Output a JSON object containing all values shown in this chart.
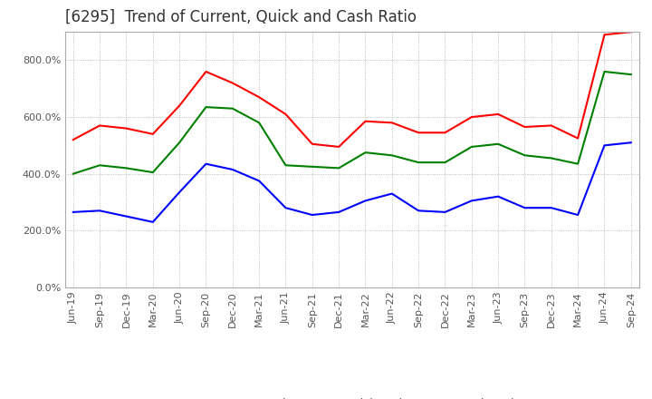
{
  "title": "[6295]  Trend of Current, Quick and Cash Ratio",
  "x_labels": [
    "Jun-19",
    "Sep-19",
    "Dec-19",
    "Mar-20",
    "Jun-20",
    "Sep-20",
    "Dec-20",
    "Mar-21",
    "Jun-21",
    "Sep-21",
    "Dec-21",
    "Mar-22",
    "Jun-22",
    "Sep-22",
    "Dec-22",
    "Mar-23",
    "Jun-23",
    "Sep-23",
    "Dec-23",
    "Mar-24",
    "Jun-24",
    "Sep-24"
  ],
  "current_ratio": [
    520,
    570,
    560,
    540,
    640,
    760,
    720,
    670,
    610,
    505,
    495,
    585,
    580,
    545,
    545,
    600,
    610,
    565,
    570,
    525,
    890,
    900
  ],
  "quick_ratio": [
    400,
    430,
    420,
    405,
    510,
    635,
    630,
    580,
    430,
    425,
    420,
    475,
    465,
    440,
    440,
    495,
    505,
    465,
    455,
    435,
    760,
    750
  ],
  "cash_ratio": [
    265,
    270,
    250,
    230,
    335,
    435,
    415,
    375,
    280,
    255,
    265,
    305,
    330,
    270,
    265,
    305,
    320,
    280,
    280,
    255,
    500,
    510
  ],
  "current_color": "#FF0000",
  "quick_color": "#008000",
  "cash_color": "#0000FF",
  "ylim": [
    0,
    900
  ],
  "yticks": [
    0,
    200,
    400,
    600,
    800
  ],
  "background_color": "#FFFFFF",
  "grid_color": "#AAAAAA",
  "title_fontsize": 12,
  "legend_fontsize": 9,
  "tick_fontsize": 8,
  "line_width": 1.5
}
